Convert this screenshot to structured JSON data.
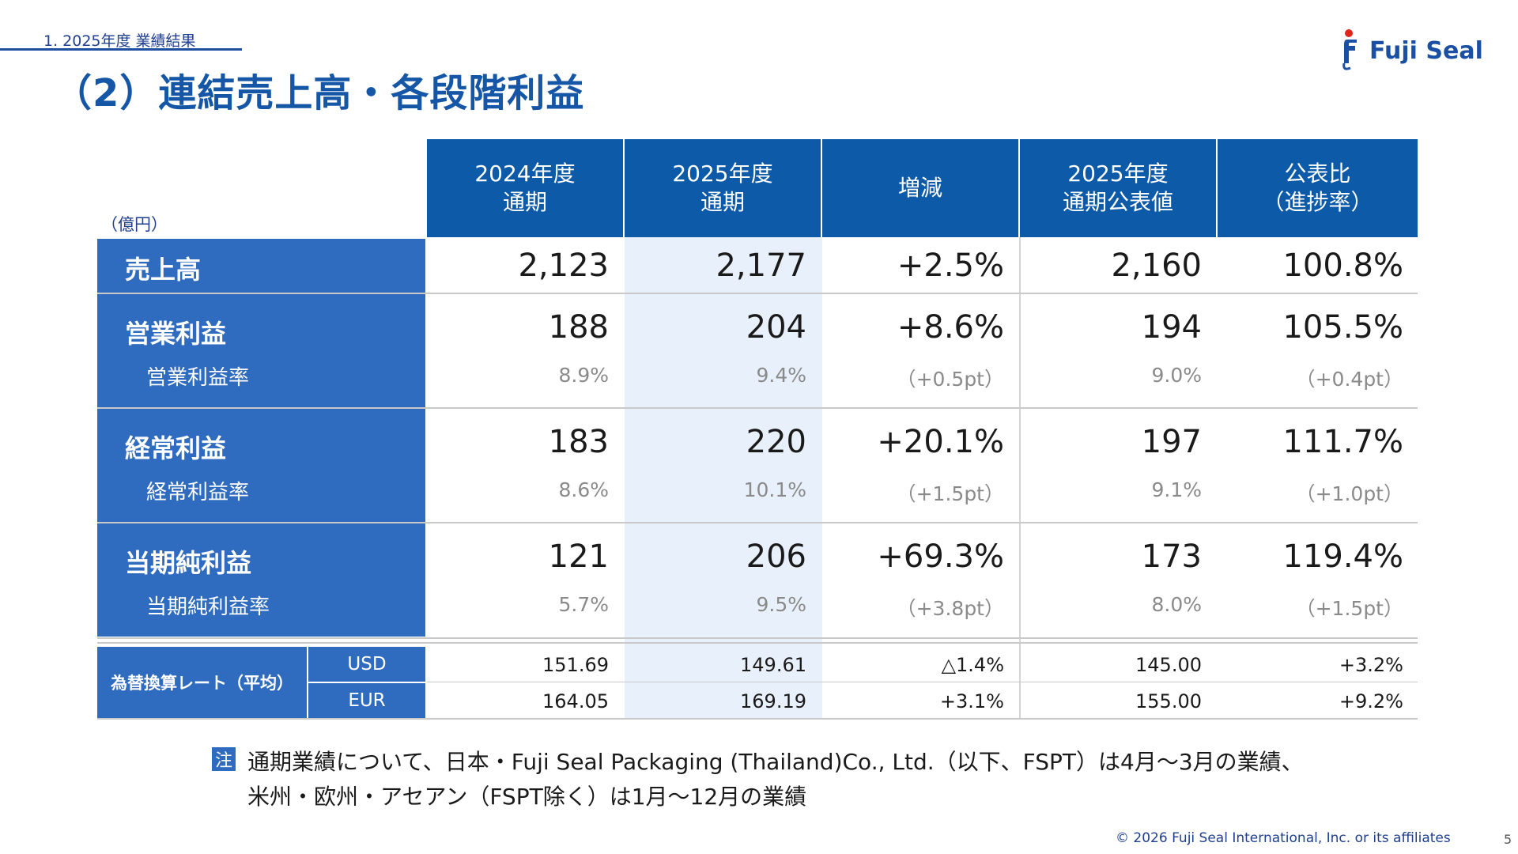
{
  "section": "1. 2025年度 業績結果",
  "title": "（2）連結売上高・各段階利益",
  "brand": "Fuji Seal",
  "unit": "（億円）",
  "headers": [
    "2024年度\n通期",
    "2025年度\n通期",
    "増減",
    "2025年度\n通期公表値",
    "公表比\n（進捗率）"
  ],
  "rows": [
    {
      "label": "売上高",
      "values": [
        "2,123",
        "2,177",
        "+2.5%",
        "2,160",
        "100.8%"
      ]
    },
    {
      "label": "営業利益",
      "values": [
        "188",
        "204",
        "+8.6%",
        "194",
        "105.5%"
      ],
      "sub_label": "営業利益率",
      "sub_values": [
        "8.9%",
        "9.4%",
        "（+0.5pt）",
        "9.0%",
        "（+0.4pt）"
      ]
    },
    {
      "label": "経常利益",
      "values": [
        "183",
        "220",
        "+20.1%",
        "197",
        "111.7%"
      ],
      "sub_label": "経常利益率",
      "sub_values": [
        "8.6%",
        "10.1%",
        "（+1.5pt）",
        "9.1%",
        "（+1.0pt）"
      ]
    },
    {
      "label": "当期純利益",
      "values": [
        "121",
        "206",
        "+69.3%",
        "173",
        "119.4%"
      ],
      "sub_label": "当期純利益率",
      "sub_values": [
        "5.7%",
        "9.5%",
        "（+3.8pt）",
        "8.0%",
        "（+1.5pt）"
      ]
    }
  ],
  "fx": {
    "label": "為替換算レート（平均）",
    "rows": [
      {
        "currency": "USD",
        "values": [
          "151.69",
          "149.61",
          "△1.4%",
          "145.00",
          "+3.2%"
        ]
      },
      {
        "currency": "EUR",
        "values": [
          "164.05",
          "169.19",
          "+3.1%",
          "155.00",
          "+9.2%"
        ]
      }
    ]
  },
  "note": {
    "badge": "注",
    "line1": "通期業績について、日本・Fuji Seal Packaging (Thailand)Co., Ltd.（以下、FSPT）は4月～3月の業績、",
    "line2": "米州・欧州・アセアン（FSPT除く）は1月～12月の業績"
  },
  "footer": "© 2026 Fuji Seal International, Inc. or its affiliates",
  "page_number": "5",
  "colors": {
    "header": "#0c5aa8",
    "label_bg": "#2f6bbf",
    "title": "#1557a6",
    "shade": "#e8f1fb"
  }
}
